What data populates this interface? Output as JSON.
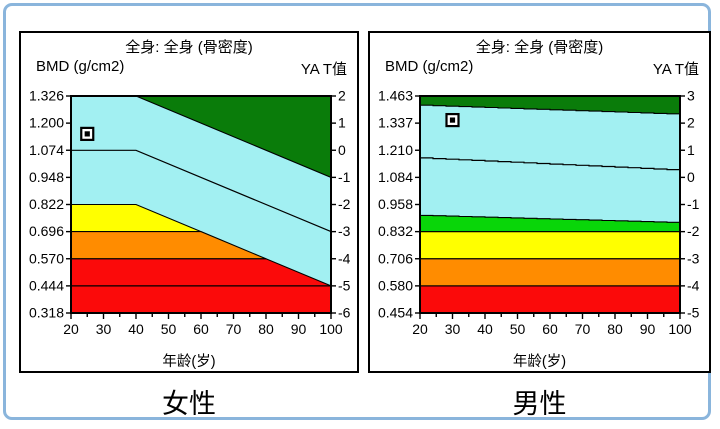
{
  "frame": {
    "border_color": "#8ab5dc",
    "background": "#ffffff"
  },
  "chart_data": [
    {
      "id": "female",
      "type": "area",
      "title": "全身: 全身 (骨密度)",
      "y_axis_label": "BMD (g/cm2)",
      "t_axis_label": "YA T值",
      "x_axis_label": "年龄(岁)",
      "gender_label": "女性",
      "x_range": [
        20,
        100
      ],
      "x_tick_step": 10,
      "x_minor_step": 5,
      "y_range": [
        0.318,
        1.326
      ],
      "background": "#a2f0f2",
      "y_ticks": [
        {
          "bmd": "1.326",
          "t": "2"
        },
        {
          "bmd": "1.200",
          "t": "1"
        },
        {
          "bmd": "1.074",
          "t": "0"
        },
        {
          "bmd": "0.948",
          "t": "-1"
        },
        {
          "bmd": "0.822",
          "t": "-2"
        },
        {
          "bmd": "0.696",
          "t": "-3"
        },
        {
          "bmd": "0.570",
          "t": "-4"
        },
        {
          "bmd": "0.444",
          "t": "-5"
        },
        {
          "bmd": "0.318",
          "t": "-6"
        }
      ],
      "x_ticks": [
        "20",
        "30",
        "40",
        "50",
        "60",
        "70",
        "80",
        "90",
        "100"
      ],
      "regions": [
        {
          "name": "normal-darkgreen-region",
          "color": "#0a7c0a",
          "pts": [
            [
              40,
              1.326
            ],
            [
              100,
              1.326
            ],
            [
              100,
              0.948
            ]
          ]
        },
        {
          "name": "osteopenia-yellow-region",
          "color": "#ffff00",
          "pts": [
            [
              20,
              0.822
            ],
            [
              40,
              0.822
            ],
            [
              60,
              0.696
            ],
            [
              20,
              0.696
            ]
          ]
        },
        {
          "name": "osteoporosis-orange-region",
          "color": "#ff8c00",
          "pts": [
            [
              20,
              0.696
            ],
            [
              60,
              0.696
            ],
            [
              80,
              0.57
            ],
            [
              20,
              0.57
            ]
          ]
        },
        {
          "name": "severe-osteoporosis-red-region",
          "color": "#fb0a0a",
          "pts": [
            [
              20,
              0.57
            ],
            [
              80,
              0.57
            ],
            [
              100,
              0.444
            ],
            [
              100,
              0.318
            ],
            [
              20,
              0.318
            ]
          ]
        }
      ],
      "lines": [
        {
          "name": "t0-reference-line",
          "pts": [
            [
              20,
              1.074
            ],
            [
              40,
              1.074
            ],
            [
              100,
              0.696
            ]
          ]
        },
        {
          "name": "t-minus5-reference-line",
          "pts": [
            [
              20,
              0.444
            ],
            [
              100,
              0.444
            ]
          ]
        }
      ],
      "marker": {
        "age": 25,
        "bmd": 1.15
      }
    },
    {
      "id": "male",
      "type": "area",
      "title": "全身: 全身 (骨密度)",
      "y_axis_label": "BMD (g/cm2)",
      "t_axis_label": "YA T值",
      "x_axis_label": "年龄(岁)",
      "gender_label": "男性",
      "x_range": [
        20,
        100
      ],
      "x_tick_step": 10,
      "x_minor_step": 5,
      "y_range": [
        0.454,
        1.463
      ],
      "background": "#a2f0f2",
      "y_ticks": [
        {
          "bmd": "1.463",
          "t": "3"
        },
        {
          "bmd": "1.337",
          "t": "2"
        },
        {
          "bmd": "1.210",
          "t": "1"
        },
        {
          "bmd": "1.084",
          "t": "0"
        },
        {
          "bmd": "0.958",
          "t": "-1"
        },
        {
          "bmd": "0.832",
          "t": "-2"
        },
        {
          "bmd": "0.706",
          "t": "-3"
        },
        {
          "bmd": "0.580",
          "t": "-4"
        },
        {
          "bmd": "0.454",
          "t": "-5"
        }
      ],
      "x_ticks": [
        "20",
        "30",
        "40",
        "50",
        "60",
        "70",
        "80",
        "90",
        "100"
      ],
      "regions": [
        {
          "name": "normal-darkgreen-region",
          "color": "#0a7c0a",
          "step": {
            "from": [
              20,
              1.42
            ],
            "to": [
              100,
              1.378
            ],
            "interval": 4
          },
          "close": [
            [
              100,
              1.463
            ],
            [
              20,
              1.463
            ]
          ]
        },
        {
          "name": "age-matched-green-region",
          "color": "#09d609",
          "step": {
            "from": [
              20,
              0.908
            ],
            "to": [
              100,
              0.874
            ],
            "interval": 4
          },
          "close": [
            [
              100,
              0.832
            ],
            [
              20,
              0.832
            ]
          ]
        },
        {
          "name": "osteopenia-yellow-region",
          "color": "#ffff00",
          "pts": [
            [
              20,
              0.832
            ],
            [
              100,
              0.832
            ],
            [
              100,
              0.706
            ],
            [
              20,
              0.706
            ]
          ]
        },
        {
          "name": "osteoporosis-orange-region",
          "color": "#ff8c00",
          "pts": [
            [
              20,
              0.706
            ],
            [
              100,
              0.706
            ],
            [
              100,
              0.58
            ],
            [
              20,
              0.58
            ]
          ]
        },
        {
          "name": "severe-osteoporosis-red-region",
          "color": "#fb0a0a",
          "pts": [
            [
              20,
              0.58
            ],
            [
              100,
              0.58
            ],
            [
              100,
              0.454
            ],
            [
              20,
              0.454
            ]
          ]
        }
      ],
      "lines": [
        {
          "name": "median-reference-line",
          "step": {
            "from": [
              20,
              1.175
            ],
            "to": [
              100,
              1.118
            ],
            "interval": 4
          }
        }
      ],
      "marker": {
        "age": 30,
        "bmd": 1.351
      }
    }
  ]
}
